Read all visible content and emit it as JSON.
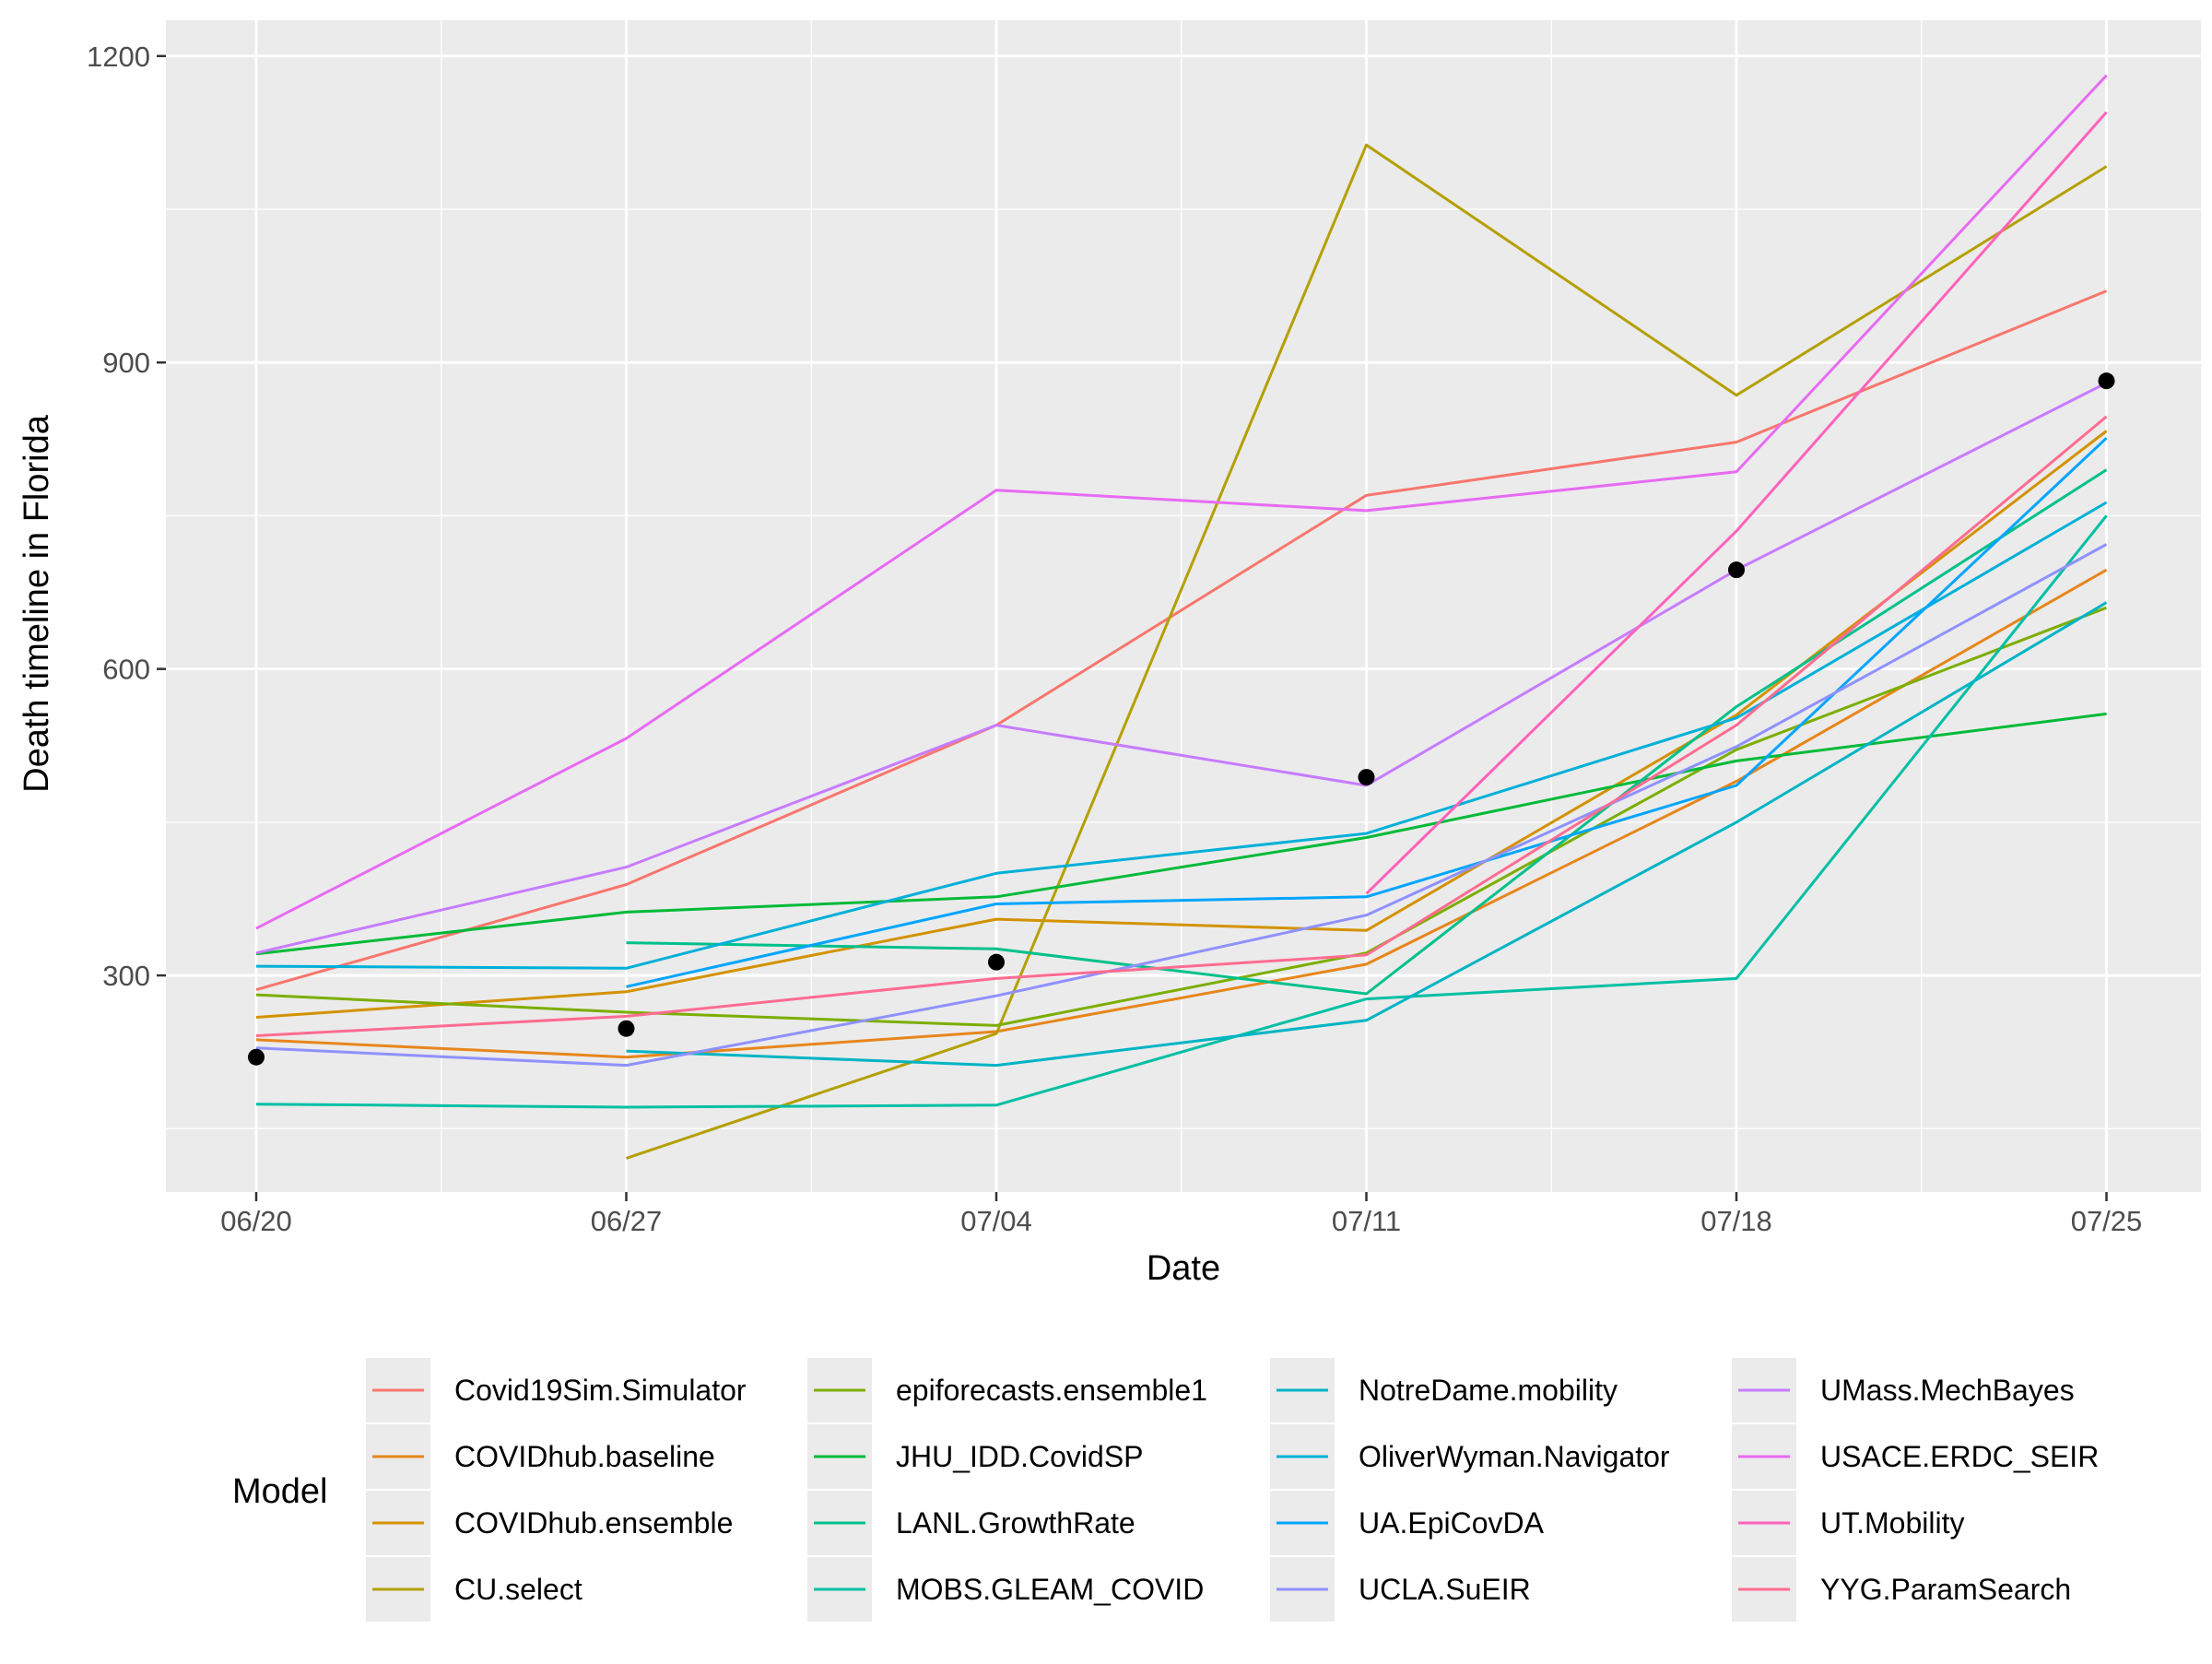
{
  "chart_data": {
    "type": "line",
    "xlabel": "Date",
    "ylabel": "Death timeline in Florida",
    "x": [
      "06/20",
      "06/27",
      "07/04",
      "07/11",
      "07/18",
      "07/25"
    ],
    "yticks": [
      300,
      600,
      900,
      1200
    ],
    "ylim": [
      88,
      1235
    ],
    "grid": true,
    "legend": {
      "title": "Model",
      "placement": "bottom"
    },
    "observed": {
      "color": "#000000",
      "values": [
        220,
        248,
        313,
        494,
        697,
        882
      ]
    },
    "series": [
      {
        "name": "Covid19Sim.Simulator",
        "color": "#F8766D",
        "values": [
          286,
          389,
          545,
          770,
          822,
          970
        ]
      },
      {
        "name": "COVIDhub.baseline",
        "color": "#E7861B",
        "values": [
          237,
          220,
          245,
          311,
          490,
          697
        ]
      },
      {
        "name": "COVIDhub.ensemble",
        "color": "#D39200",
        "values": [
          259,
          284,
          355,
          344,
          555,
          833
        ]
      },
      {
        "name": "CU.select",
        "color": "#B4A000",
        "values": [
          null,
          121,
          243,
          1113,
          868,
          1092
        ]
      },
      {
        "name": "epiforecasts.ensemble1",
        "color": "#7CAE00",
        "values": [
          281,
          264,
          251,
          322,
          521,
          660
        ]
      },
      {
        "name": "JHU_IDD.CovidSP",
        "color": "#00BA38",
        "values": [
          321,
          362,
          377,
          435,
          510,
          556
        ]
      },
      {
        "name": "LANL.GrowthRate",
        "color": "#00C08B",
        "values": [
          null,
          332,
          326,
          282,
          563,
          795
        ]
      },
      {
        "name": "MOBS.GLEAM_COVID",
        "color": "#00BFA4",
        "values": [
          174,
          171,
          173,
          277,
          297,
          750
        ]
      },
      {
        "name": "NotreDame.mobility",
        "color": "#00B4C4",
        "values": [
          null,
          226,
          212,
          256,
          450,
          665
        ]
      },
      {
        "name": "OliverWyman.Navigator",
        "color": "#00B0D8",
        "values": [
          309,
          307,
          400,
          439,
          552,
          763
        ]
      },
      {
        "name": "UA.EpiCovDA",
        "color": "#00A5FF",
        "values": [
          null,
          289,
          370,
          377,
          486,
          826
        ]
      },
      {
        "name": "UCLA.SuEIR",
        "color": "#8F91FF",
        "values": [
          229,
          212,
          280,
          359,
          524,
          722
        ]
      },
      {
        "name": "UMass.MechBayes",
        "color": "#C77CFF",
        "values": [
          322,
          406,
          545,
          486,
          697,
          880
        ]
      },
      {
        "name": "USACE.ERDC_SEIR",
        "color": "#E76BF3",
        "values": [
          346,
          532,
          775,
          755,
          793,
          1181
        ]
      },
      {
        "name": "UT.Mobility",
        "color": "#FF62BC",
        "values": [
          null,
          null,
          null,
          380,
          735,
          1145
        ]
      },
      {
        "name": "YYG.ParamSearch",
        "color": "#FF6C91",
        "values": [
          241,
          260,
          297,
          320,
          545,
          847
        ]
      }
    ]
  }
}
